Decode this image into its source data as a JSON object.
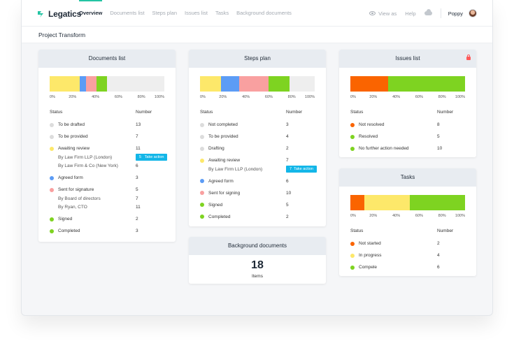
{
  "brand": {
    "name": "Legatics",
    "color": "#23c4a3"
  },
  "nav": {
    "items": [
      "Overview",
      "Documents list",
      "Steps plan",
      "Issues list",
      "Tasks",
      "Background documents"
    ],
    "view_as": "View as",
    "help": "Help",
    "user": "Poppy"
  },
  "page": {
    "title": "Project Transform"
  },
  "ticks": [
    "0%",
    "20%",
    "40%",
    "60%",
    "80%",
    "100%"
  ],
  "table_headers": {
    "status": "Status",
    "number": "Number"
  },
  "documents_list": {
    "title": "Documents list",
    "bar": [
      {
        "color": "#fde86a",
        "value": 0.26
      },
      {
        "color": "#5c9cf5",
        "value": 0.06
      },
      {
        "color": "#f9a0a0",
        "value": 0.09
      },
      {
        "color": "#7ed321",
        "value": 0.09
      },
      {
        "color": "#eeeeee",
        "value": 0.5
      }
    ],
    "rows": [
      {
        "status": "To be drafted",
        "number": "13",
        "color": "#dcdcdc"
      },
      {
        "status": "To be provided",
        "number": "7",
        "color": "#dcdcdc"
      },
      {
        "status": "Awaiting review",
        "number": "11",
        "color": "#fde86a"
      },
      {
        "status": "By Law Firm LLP (London)",
        "number": "5",
        "sub": true,
        "badge": "Take action"
      },
      {
        "status": "By Law Firm & Co (New York)",
        "number": "6",
        "sub": true
      },
      {
        "status": "Agreed form",
        "number": "3",
        "color": "#5c9cf5"
      },
      {
        "status": "Sent for signature",
        "number": "5",
        "color": "#f9a0a0"
      },
      {
        "status": "By Board of directors",
        "number": "7",
        "sub": true
      },
      {
        "status": "By Ryan, CTO",
        "number": "11",
        "sub": true
      },
      {
        "status": "Signed",
        "number": "2",
        "color": "#7ed321"
      },
      {
        "status": "Completed",
        "number": "3",
        "color": "#7ed321"
      }
    ]
  },
  "steps_plan": {
    "title": "Steps plan",
    "bar": [
      {
        "color": "#fde86a",
        "value": 0.18
      },
      {
        "color": "#5c9cf5",
        "value": 0.16
      },
      {
        "color": "#f9a0a0",
        "value": 0.26
      },
      {
        "color": "#7ed321",
        "value": 0.18
      },
      {
        "color": "#eeeeee",
        "value": 0.22
      }
    ],
    "rows": [
      {
        "status": "Not completed",
        "number": "3",
        "color": "#dcdcdc"
      },
      {
        "status": "To be provided",
        "number": "4",
        "color": "#dcdcdc"
      },
      {
        "status": "Drafting",
        "number": "2",
        "color": "#dcdcdc"
      },
      {
        "status": "Awaiting review",
        "number": "7",
        "color": "#fde86a"
      },
      {
        "status": "By Law Firm LLP (London)",
        "number": "7",
        "sub": true,
        "badge": "Take action",
        "badge_num": true
      },
      {
        "status": "Agreed form",
        "number": "6",
        "color": "#5c9cf5"
      },
      {
        "status": "Sent for signing",
        "number": "10",
        "color": "#f9a0a0"
      },
      {
        "status": "Signed",
        "number": "5",
        "color": "#7ed321"
      },
      {
        "status": "Completed",
        "number": "2",
        "color": "#7ed321"
      }
    ]
  },
  "background_documents": {
    "title": "Background documents",
    "count": "18",
    "label": "Items"
  },
  "issues_list": {
    "title": "Issues list",
    "bar": [
      {
        "color": "#fa6400",
        "value": 0.33
      },
      {
        "color": "#7ed321",
        "value": 0.67
      }
    ],
    "rows": [
      {
        "status": "Not resolved",
        "number": "8",
        "color": "#fa6400"
      },
      {
        "status": "Resolved",
        "number": "5",
        "color": "#7ed321"
      },
      {
        "status": "No further action needed",
        "number": "10",
        "color": "#7ed321"
      }
    ]
  },
  "tasks": {
    "title": "Tasks",
    "bar": [
      {
        "color": "#fa6400",
        "value": 0.12
      },
      {
        "color": "#fde86a",
        "value": 0.4
      },
      {
        "color": "#7ed321",
        "value": 0.48
      }
    ],
    "rows": [
      {
        "status": "Not started",
        "number": "2",
        "color": "#fa6400"
      },
      {
        "status": "In progress",
        "number": "4",
        "color": "#fde86a"
      },
      {
        "status": "Compele",
        "number": "6",
        "color": "#7ed321"
      }
    ]
  }
}
